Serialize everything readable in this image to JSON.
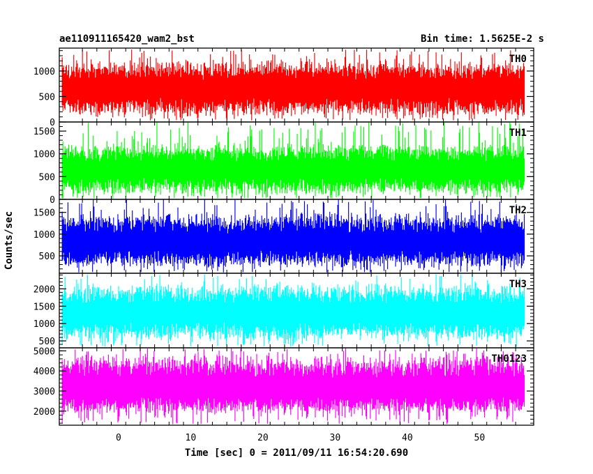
{
  "chart_data": {
    "type": "line",
    "title_left": "ae110911165420_wam2_bst",
    "title_right": "Bin time: 1.5625E-2 s",
    "xlabel": "Time [sec] 0 = 2011/09/11 16:54:20.690",
    "ylabel": "Counts/sec",
    "xlim": [
      -8.2,
      57.5
    ],
    "x_range": [
      -7.8,
      56.2
    ],
    "x_ticks": [
      0,
      10,
      20,
      30,
      40,
      50
    ],
    "grid": false,
    "panels": [
      {
        "name": "TH0",
        "color": "#ff0000",
        "ylim": [
          0,
          1450
        ],
        "y_ticks": [
          0,
          500,
          1000
        ],
        "base": 640,
        "lower_range": [
          30,
          220
        ],
        "upper_range": [
          960,
          1450
        ],
        "typical_low": 170,
        "typical_high": 1130
      },
      {
        "name": "TH1",
        "color": "#00ff00",
        "ylim": [
          0,
          1700
        ],
        "y_ticks": [
          0,
          500,
          1000,
          1500
        ],
        "base": 640,
        "lower_range": [
          20,
          230
        ],
        "upper_range": [
          1000,
          1700
        ],
        "typical_low": 170,
        "typical_high": 1150
      },
      {
        "name": "TH2",
        "color": "#0000ff",
        "ylim": [
          100,
          1800
        ],
        "y_ticks": [
          500,
          1000,
          1500
        ],
        "base": 800,
        "lower_range": [
          120,
          400
        ],
        "upper_range": [
          1250,
          1800
        ],
        "typical_low": 300,
        "typical_high": 1400
      },
      {
        "name": "TH3",
        "color": "#00ffff",
        "ylim": [
          300,
          2450
        ],
        "y_ticks": [
          500,
          1000,
          1500,
          2000
        ],
        "base": 1300,
        "lower_range": [
          330,
          760
        ],
        "upper_range": [
          1600,
          2450
        ],
        "typical_low": 600,
        "typical_high": 2050
      },
      {
        "name": "TH0123",
        "color": "#ff00ff",
        "ylim": [
          1300,
          5150
        ],
        "y_ticks": [
          2000,
          3000,
          4000,
          5000
        ],
        "base": 3100,
        "lower_range": [
          1350,
          2200
        ],
        "upper_range": [
          4100,
          5150
        ],
        "typical_low": 2000,
        "typical_high": 4600
      }
    ]
  }
}
